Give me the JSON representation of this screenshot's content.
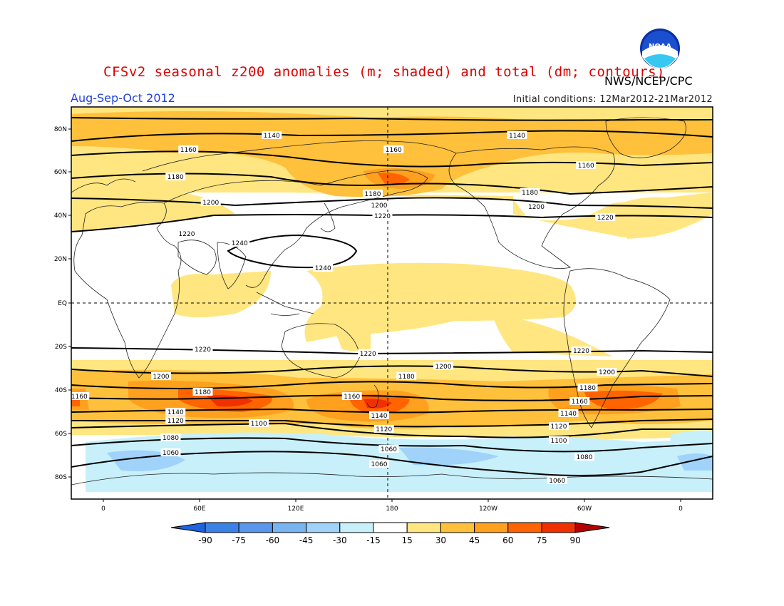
{
  "header": {
    "title": "CFSv2 seasonal z200 anomalies (m; shaded) and total (dm; contours)",
    "organization": "NWS/NCEP/CPC",
    "season": "Aug-Sep-Oct 2012",
    "initial_conditions": "Initial conditions: 12Mar2012-21Mar2012",
    "logo_text": "NOAA"
  },
  "axes": {
    "lat_labels": [
      "80N",
      "60N",
      "40N",
      "20N",
      "EQ",
      "20S",
      "40S",
      "60S",
      "80S"
    ],
    "lon_labels": [
      "0",
      "60E",
      "120E",
      "180",
      "120W",
      "60W",
      "0"
    ]
  },
  "contour_labels": {
    "north": [
      {
        "text": "1140",
        "lon": 105
      },
      {
        "text": "1140",
        "lon": 258
      },
      {
        "text": "1160",
        "lon": 53
      },
      {
        "text": "1160",
        "lon": 181
      },
      {
        "text": "1160",
        "lon": 301
      },
      {
        "text": "1180",
        "lon": 45
      },
      {
        "text": "1180",
        "lon": 168
      },
      {
        "text": "1180",
        "lon": 266
      },
      {
        "text": "1200",
        "lon": 67
      },
      {
        "text": "1200",
        "lon": 172
      },
      {
        "text": "1200",
        "lon": 270
      },
      {
        "text": "1220",
        "lon": 52
      },
      {
        "text": "1220",
        "lon": 174
      },
      {
        "text": "1220",
        "lon": 313
      },
      {
        "text": "1240",
        "lon": 85
      },
      {
        "text": "1240",
        "lon": 137
      }
    ],
    "south": [
      {
        "text": "1220",
        "lon": 62
      },
      {
        "text": "1220",
        "lon": 165
      },
      {
        "text": "1220",
        "lon": 298
      },
      {
        "text": "1200",
        "lon": 36
      },
      {
        "text": "1200",
        "lon": 212
      },
      {
        "text": "1200",
        "lon": 314
      },
      {
        "text": "1180",
        "lon": 62
      },
      {
        "text": "1180",
        "lon": 189
      },
      {
        "text": "1180",
        "lon": 302
      },
      {
        "text": "1160",
        "lon": -15
      },
      {
        "text": "1160",
        "lon": 155
      },
      {
        "text": "1160",
        "lon": 297
      },
      {
        "text": "1140",
        "lon": 45
      },
      {
        "text": "1140",
        "lon": 172
      },
      {
        "text": "1140",
        "lon": 290
      },
      {
        "text": "1120",
        "lon": 45
      },
      {
        "text": "1120",
        "lon": 175
      },
      {
        "text": "1120",
        "lon": 284
      },
      {
        "text": "1100",
        "lon": 97
      },
      {
        "text": "1100",
        "lon": 284
      },
      {
        "text": "1080",
        "lon": 42
      },
      {
        "text": "1080",
        "lon": 300
      },
      {
        "text": "1060",
        "lon": 42
      },
      {
        "text": "1060",
        "lon": 178
      },
      {
        "text": "1060",
        "lon": 172
      },
      {
        "text": "1060",
        "lon": 283
      }
    ]
  },
  "colorbar": {
    "labels": [
      "-90",
      "-75",
      "-60",
      "-45",
      "-30",
      "-15",
      "15",
      "30",
      "45",
      "60",
      "75",
      "90"
    ],
    "colors": [
      "#1e64dc",
      "#3c82e6",
      "#5a96eb",
      "#78b4f0",
      "#a0d2fa",
      "#c8f0fa",
      "#ffffff",
      "#ffe680",
      "#ffc03c",
      "#ffa01e",
      "#ff6400",
      "#f03000",
      "#b40000"
    ]
  },
  "colors": {
    "title": "#e00000",
    "season": "#2040e0"
  }
}
